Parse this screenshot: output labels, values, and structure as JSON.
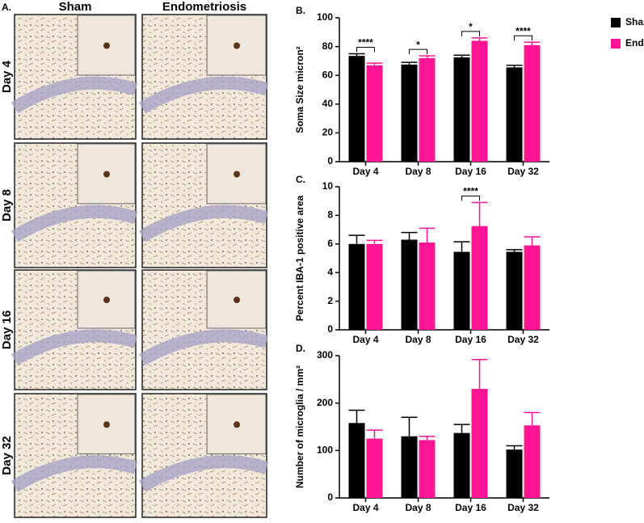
{
  "panel_a": {
    "letter": "A.",
    "columns": [
      "Sham",
      "Endometriosis"
    ],
    "rows": [
      "Day 4",
      "Day 8",
      "Day 16",
      "Day 32"
    ]
  },
  "chart_data": [
    {
      "type": "bar",
      "panel": "B.",
      "ylabel": "Soma Size micron²",
      "categories": [
        "Day 4",
        "Day 8",
        "Day 16",
        "Day 32"
      ],
      "series": [
        {
          "name": "Sham",
          "color": "#000000",
          "values": [
            73.5,
            67.5,
            72.5,
            65.5
          ],
          "errors": [
            1.5,
            1.5,
            1.5,
            1.5
          ]
        },
        {
          "name": "Endometriosis",
          "color": "#ff1493",
          "values": [
            67,
            72,
            84,
            81
          ],
          "errors": [
            1.5,
            1.5,
            2,
            2
          ]
        }
      ],
      "annotations": [
        "****",
        "*",
        "*",
        "****"
      ],
      "ylim": [
        0,
        100
      ],
      "yticks": [
        0,
        20,
        40,
        60,
        80,
        100
      ],
      "legend": "right"
    },
    {
      "type": "bar",
      "panel": "C.",
      "ylabel": "Percent IBA-1 positive area",
      "categories": [
        "Day 4",
        "Day 8",
        "Day 16",
        "Day 32"
      ],
      "series": [
        {
          "color": "#000000",
          "values": [
            6.0,
            6.3,
            5.45,
            5.45
          ],
          "errors": [
            0.6,
            0.5,
            0.7,
            0.15
          ]
        },
        {
          "color": "#ff1493",
          "values": [
            6.0,
            6.1,
            7.25,
            5.9
          ],
          "errors": [
            0.25,
            1.0,
            1.65,
            0.6
          ]
        }
      ],
      "annotations": [
        null,
        null,
        "****",
        null
      ],
      "ylim": [
        0,
        10
      ],
      "yticks": [
        0,
        2,
        4,
        6,
        8,
        10
      ]
    },
    {
      "type": "bar",
      "panel": "D.",
      "ylabel": "Number of microglia / mm²",
      "categories": [
        "Day 4",
        "Day 8",
        "Day 16",
        "Day 32"
      ],
      "series": [
        {
          "color": "#000000",
          "values": [
            158,
            130,
            137,
            102
          ],
          "errors": [
            27,
            40,
            18,
            8
          ]
        },
        {
          "color": "#ff1493",
          "values": [
            125,
            122,
            230,
            153
          ],
          "errors": [
            18,
            8,
            62,
            27
          ]
        }
      ],
      "ylim": [
        0,
        300
      ],
      "yticks": [
        0,
        100,
        200,
        300
      ]
    }
  ]
}
